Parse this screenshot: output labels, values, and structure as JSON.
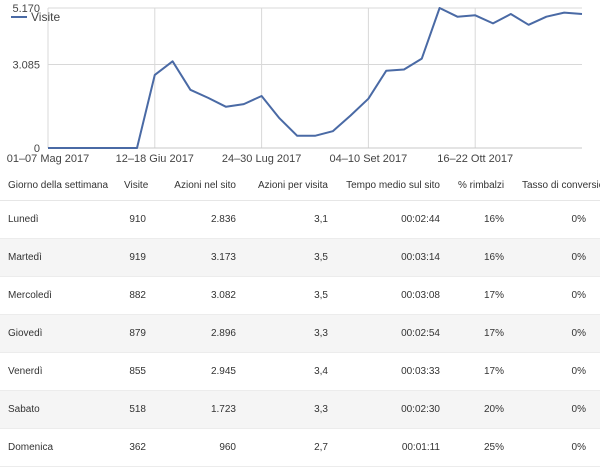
{
  "chart_data": {
    "type": "line",
    "series": [
      {
        "name": "Visite",
        "color": "#4a6aa5",
        "values": [
          0,
          0,
          0,
          0,
          0,
          0,
          2700,
          3200,
          2150,
          1850,
          1520,
          1620,
          1920,
          1100,
          450,
          450,
          620,
          1200,
          1820,
          2850,
          2900,
          3300,
          5170,
          4850,
          4900,
          4600,
          4950,
          4550,
          4850,
          5000,
          4950
        ]
      }
    ],
    "x_tick_labels": [
      "01–07 Mag 2017",
      "12–18 Giu 2017",
      "24–30 Lug 2017",
      "04–10 Set 2017",
      "16–22 Ott 2017"
    ],
    "x_tick_point_index": [
      0,
      6,
      12,
      18,
      24
    ],
    "y_tick_labels": [
      "5.170",
      "3.085",
      "0"
    ],
    "y_tick_values": [
      5170,
      3085,
      0
    ],
    "ylim": [
      0,
      5170
    ],
    "grid": true,
    "legend": "top-left"
  },
  "table": {
    "headers": [
      "Giorno della settimana",
      "Visite",
      "Azioni nel sito",
      "Azioni per visita",
      "Tempo medio sul sito",
      "% rimbalzi",
      "Tasso di conversione"
    ],
    "rows": [
      [
        "Lunedì",
        "910",
        "2.836",
        "3,1",
        "00:02:44",
        "16%",
        "0%"
      ],
      [
        "Martedì",
        "919",
        "3.173",
        "3,5",
        "00:03:14",
        "16%",
        "0%"
      ],
      [
        "Mercoledì",
        "882",
        "3.082",
        "3,5",
        "00:03:08",
        "17%",
        "0%"
      ],
      [
        "Giovedì",
        "879",
        "2.896",
        "3,3",
        "00:02:54",
        "17%",
        "0%"
      ],
      [
        "Venerdì",
        "855",
        "2.945",
        "3,4",
        "00:03:33",
        "17%",
        "0%"
      ],
      [
        "Sabato",
        "518",
        "1.723",
        "3,3",
        "00:02:30",
        "20%",
        "0%"
      ],
      [
        "Domenica",
        "362",
        "960",
        "2,7",
        "00:01:11",
        "25%",
        "0%"
      ]
    ]
  }
}
